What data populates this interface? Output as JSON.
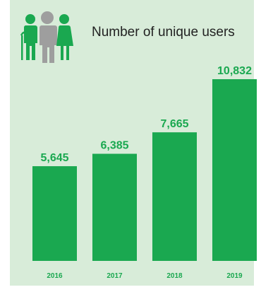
{
  "title": "Number of unique users",
  "colors": {
    "bar": "#1aa850",
    "background": "#d8ecd9",
    "icon_green": "#1aa850",
    "icon_gray": "#9e9e9e"
  },
  "icon": "people-group-icon",
  "chart_data": {
    "type": "bar",
    "title": "Number of unique users",
    "categories": [
      "2016",
      "2017",
      "2018",
      "2019"
    ],
    "values": [
      5645,
      6385,
      7665,
      10832
    ],
    "value_labels": [
      "5,645",
      "6,385",
      "7,665",
      "10,832"
    ],
    "xlabel": "",
    "ylabel": "",
    "grid": false,
    "legend": "none"
  }
}
